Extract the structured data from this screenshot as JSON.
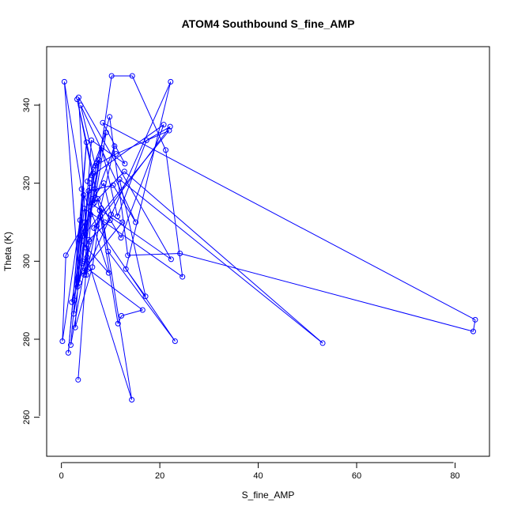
{
  "chart_data": {
    "type": "line",
    "title": "ATOM4 Southbound S_fine_AMP",
    "xlabel": "S_fine_AMP",
    "ylabel": "Theta (K)",
    "xlim": [
      -3,
      87
    ],
    "ylim": [
      250,
      355
    ],
    "xticks": [
      0,
      20,
      40,
      60,
      80
    ],
    "yticks": [
      260,
      280,
      300,
      320,
      340
    ],
    "grid": false,
    "series_color": "#0000ff",
    "x": [
      3.4,
      5.2,
      14.3,
      8.1,
      6.3,
      2.8,
      4.5,
      1.9,
      5.7,
      3.6,
      0.6,
      4.1,
      7.2,
      23.1,
      9.5,
      3.2,
      6.5,
      4.3,
      2.5,
      5.1,
      1.4,
      3.8,
      0.2,
      0.9,
      4.8,
      2.1,
      7.9,
      11.5,
      12.2,
      16.5,
      5.4,
      3.5,
      22.3,
      6.4,
      10.2,
      14.4,
      21.2,
      24.6,
      8.8,
      4.6,
      3.3,
      7.6,
      5.3,
      9.1,
      6.7,
      12.8,
      53.1,
      11.8,
      17.1,
      13.1,
      22.2,
      4.7,
      5.8,
      2.6,
      7.1,
      9.8,
      13.5,
      24.1,
      83.7,
      84.1,
      8.4,
      12.9,
      6.1,
      4.2,
      5.5,
      10.5,
      15.1,
      3.9,
      6.9,
      11.1,
      21.9,
      4.4,
      5.9,
      6.2,
      20.8,
      12.1,
      7.4,
      9.9,
      5.6,
      4.9,
      6.8,
      8.2,
      11.4,
      17.3,
      22.1,
      6.6,
      9.6,
      3.7,
      10.8,
      7.8,
      5.1,
      6.3,
      8.6,
      10.1,
      12.4,
      4.4
    ],
    "y": [
      269.6,
      301.0,
      264.5,
      313.5,
      298.5,
      283.0,
      317.0,
      278.5,
      305.0,
      294.5,
      346.0,
      318.5,
      309.0,
      279.5,
      302.5,
      341.5,
      322.5,
      300.0,
      286.5,
      330.5,
      276.5,
      310.5,
      279.5,
      301.5,
      310.0,
      289.5,
      311.5,
      284.0,
      286.0,
      287.5,
      298.0,
      342.0,
      300.5,
      314.5,
      347.5,
      347.5,
      328.5,
      296.0,
      310.0,
      313.5,
      293.5,
      326.0,
      320.5,
      333.0,
      315.0,
      323.0,
      279.0,
      321.0,
      291.0,
      298.0,
      346.0,
      296.5,
      320.0,
      290.0,
      325.0,
      337.0,
      301.5,
      302.0,
      282.0,
      285.0,
      335.5,
      325.0,
      331.0,
      299.5,
      318.0,
      319.5,
      310.0,
      340.0,
      324.5,
      327.5,
      333.5,
      306.5,
      312.0,
      322.0,
      335.0,
      306.0,
      316.0,
      310.5,
      305.5,
      303.5,
      318.5,
      329.0,
      311.5,
      331.0,
      334.5,
      308.5,
      297.0,
      305.5,
      329.5,
      313.0,
      296.5,
      316.0,
      320.0,
      312.0,
      310.0,
      297.5
    ]
  }
}
